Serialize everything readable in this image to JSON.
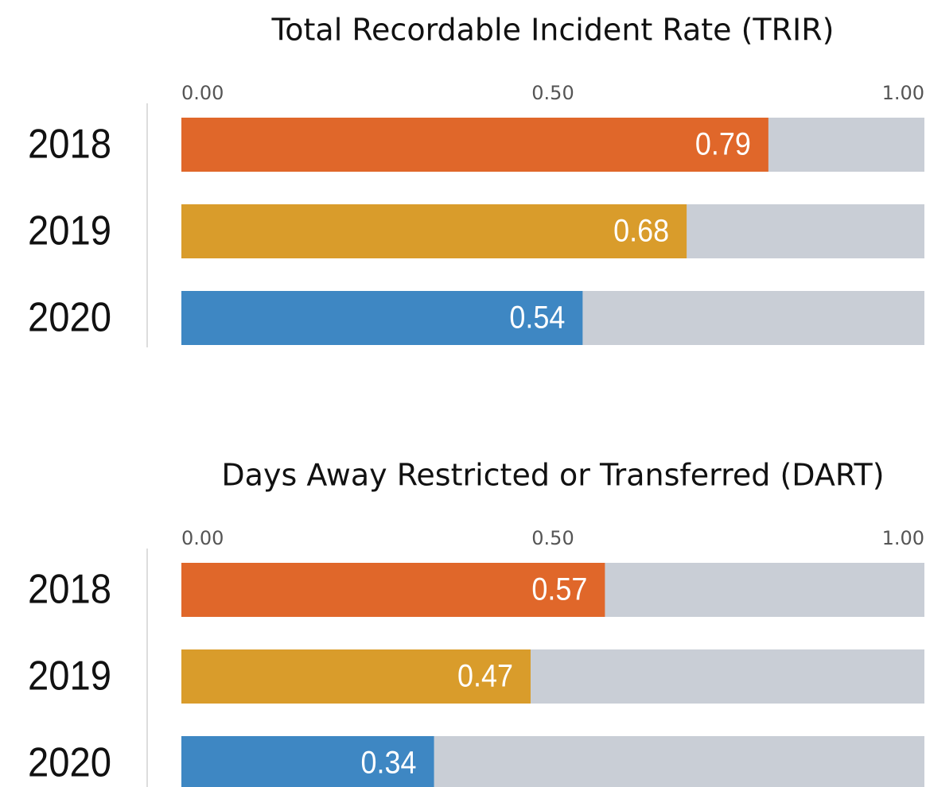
{
  "chart_data": [
    {
      "type": "bar",
      "title": "Total Recordable Incident Rate (TRIR)",
      "categories": [
        "2018",
        "2019",
        "2020"
      ],
      "values": [
        0.79,
        0.68,
        0.54
      ],
      "colors": [
        "#e0672a",
        "#d99c2b",
        "#3e87c3"
      ],
      "track_color": "#c9ced6",
      "xlim": [
        0,
        1
      ],
      "xticks": [
        {
          "value": 0,
          "label": "0.00"
        },
        {
          "value": 0.5,
          "label": "0.50"
        },
        {
          "value": 1,
          "label": "1.00"
        }
      ]
    },
    {
      "type": "bar",
      "title": "Days Away Restricted or Transferred (DART)",
      "categories": [
        "2018",
        "2019",
        "2020"
      ],
      "values": [
        0.57,
        0.47,
        0.34
      ],
      "colors": [
        "#e0672a",
        "#d99c2b",
        "#3e87c3"
      ],
      "track_color": "#c9ced6",
      "xlim": [
        0,
        1
      ],
      "xticks": [
        {
          "value": 0,
          "label": "0.00"
        },
        {
          "value": 0.5,
          "label": "0.50"
        },
        {
          "value": 1,
          "label": "1.00"
        }
      ]
    }
  ]
}
